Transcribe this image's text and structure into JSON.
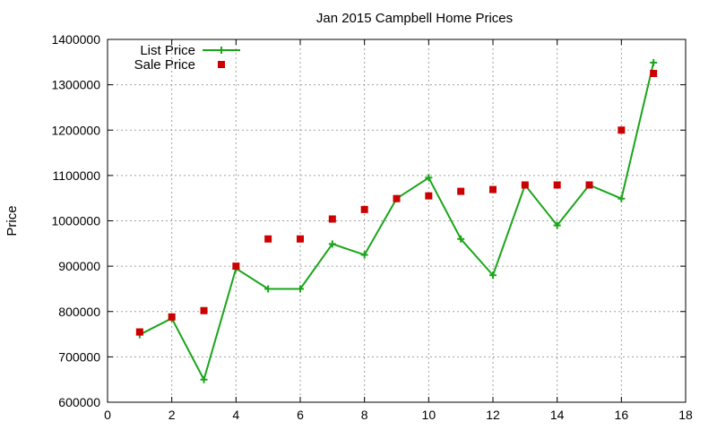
{
  "chart_data": {
    "type": "line",
    "title": "Jan 2015 Campbell Home Prices",
    "xlabel": "",
    "ylabel": "Price",
    "xlim": [
      0,
      18
    ],
    "ylim": [
      600000,
      1400000
    ],
    "x_ticks": [
      0,
      2,
      4,
      6,
      8,
      10,
      12,
      14,
      16,
      18
    ],
    "y_ticks": [
      600000,
      700000,
      800000,
      900000,
      1000000,
      1100000,
      1200000,
      1300000,
      1400000
    ],
    "grid": true,
    "legend_position": "top-left",
    "series": [
      {
        "name": "List Price",
        "style": "lines+points",
        "marker": "plus",
        "color": "#1aa51a",
        "x": [
          1,
          2,
          3,
          4,
          5,
          6,
          7,
          8,
          9,
          10,
          11,
          12,
          13,
          14,
          15,
          16,
          17
        ],
        "values": [
          749000,
          785000,
          650000,
          895000,
          850000,
          850000,
          949000,
          925000,
          1049000,
          1095000,
          960000,
          880000,
          1079000,
          990000,
          1079000,
          1049000,
          1349000
        ]
      },
      {
        "name": "Sale Price",
        "style": "points",
        "marker": "square",
        "color": "#cc0000",
        "x": [
          1,
          2,
          3,
          4,
          5,
          6,
          7,
          8,
          9,
          10,
          11,
          12,
          13,
          14,
          15,
          16,
          17
        ],
        "values": [
          755000,
          788000,
          802000,
          900000,
          960000,
          960000,
          1004000,
          1025000,
          1049000,
          1055000,
          1065000,
          1069000,
          1079000,
          1079000,
          1079000,
          1200000,
          1325000
        ]
      }
    ]
  }
}
